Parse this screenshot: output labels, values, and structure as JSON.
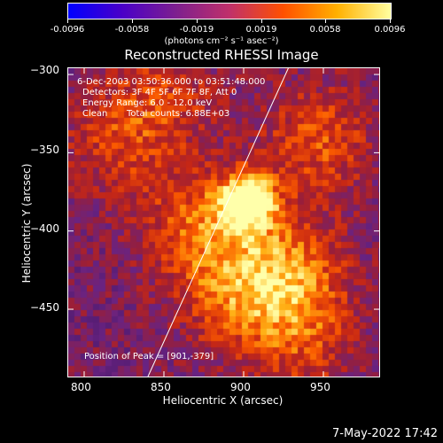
{
  "colorbar": {
    "ticks": [
      "-0.0096",
      "-0.0058",
      "-0.0019",
      "0.0019",
      "0.0058",
      "0.0096"
    ],
    "units": "(photons cm⁻² s⁻¹ asec⁻²)",
    "colors": [
      "#0000ff",
      "#4a00c8",
      "#7d1f8f",
      "#c0306a",
      "#ff5000",
      "#ffb000",
      "#ffffa0"
    ]
  },
  "title": "Reconstructed RHESSI Image",
  "info": {
    "line1": "6-Dec-2003 03:50:36.000 to 03:51:48.000",
    "line2": "Detectors: 3F 4F 5F 6F 7F 8F, Att 0",
    "line3": "Energy Range: 6.0 - 12.0 keV",
    "line4_left": "Clean",
    "line4_right": "Total counts: 6.88E+03",
    "peak": "Position of Peak = [901,-379]"
  },
  "chart_data": {
    "type": "heatmap",
    "title": "Reconstructed RHESSI Image",
    "xlabel": "Heliocentric X (arcsec)",
    "ylabel": "Heliocentric Y (arcsec)",
    "xlim": [
      790,
      985
    ],
    "ylim": [
      -493,
      -296
    ],
    "x_ticks": [
      800,
      850,
      900,
      950
    ],
    "y_ticks": [
      -300,
      -350,
      -400,
      -450
    ],
    "x_tick_labels": [
      "800",
      "850",
      "900",
      "950"
    ],
    "y_tick_labels": [
      "−300",
      "−350",
      "−400",
      "−450"
    ],
    "peak": [
      901,
      -379
    ],
    "limb_line": {
      "x": [
        840,
        928
      ],
      "y": [
        -493,
        -296
      ]
    },
    "hot_spots": [
      {
        "x": 901,
        "y": -379,
        "intensity": 1.0
      },
      {
        "x": 925,
        "y": -425,
        "intensity": 0.62
      },
      {
        "x": 870,
        "y": -395,
        "intensity": 0.5
      },
      {
        "x": 945,
        "y": -340,
        "intensity": 0.45
      },
      {
        "x": 820,
        "y": -340,
        "intensity": 0.35
      },
      {
        "x": 890,
        "y": -440,
        "intensity": 0.4
      },
      {
        "x": 850,
        "y": -310,
        "intensity": 0.3
      },
      {
        "x": 935,
        "y": -470,
        "intensity": 0.35
      }
    ]
  },
  "footer": {
    "timestamp": "7-May-2022 17:42"
  }
}
